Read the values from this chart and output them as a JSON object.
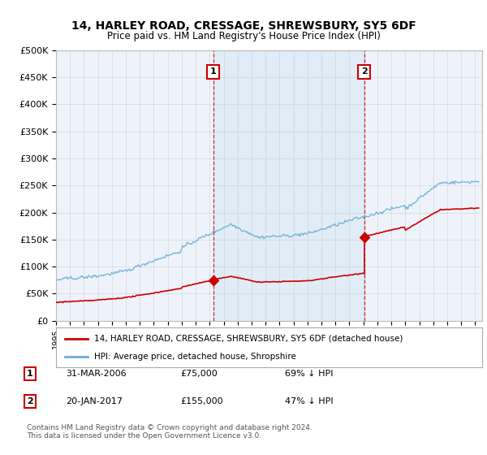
{
  "title": "14, HARLEY ROAD, CRESSAGE, SHREWSBURY, SY5 6DF",
  "subtitle": "Price paid vs. HM Land Registry's House Price Index (HPI)",
  "ylabel_ticks": [
    "£0",
    "£50K",
    "£100K",
    "£150K",
    "£200K",
    "£250K",
    "£300K",
    "£350K",
    "£400K",
    "£450K",
    "£500K"
  ],
  "ylim": [
    0,
    500000
  ],
  "xlim_start": 1995.0,
  "xlim_end": 2025.5,
  "sale1_x": 2006.25,
  "sale1_y": 75000,
  "sale1_label": "1",
  "sale2_x": 2017.05,
  "sale2_y": 155000,
  "sale2_label": "2",
  "sale1_date": "31-MAR-2006",
  "sale1_price": "£75,000",
  "sale1_hpi": "69% ↓ HPI",
  "sale2_date": "20-JAN-2017",
  "sale2_price": "£155,000",
  "sale2_hpi": "47% ↓ HPI",
  "legend_line1": "14, HARLEY ROAD, CRESSAGE, SHREWSBURY, SY5 6DF (detached house)",
  "legend_line2": "HPI: Average price, detached house, Shropshire",
  "footnote": "Contains HM Land Registry data © Crown copyright and database right 2024.\nThis data is licensed under the Open Government Licence v3.0.",
  "hpi_color": "#6baed6",
  "sale_color": "#cc0000",
  "bg_color": "#ffffff",
  "plot_bg": "#eef3fb",
  "shade_color": "#d0e4f7",
  "grid_color": "#cccccc"
}
